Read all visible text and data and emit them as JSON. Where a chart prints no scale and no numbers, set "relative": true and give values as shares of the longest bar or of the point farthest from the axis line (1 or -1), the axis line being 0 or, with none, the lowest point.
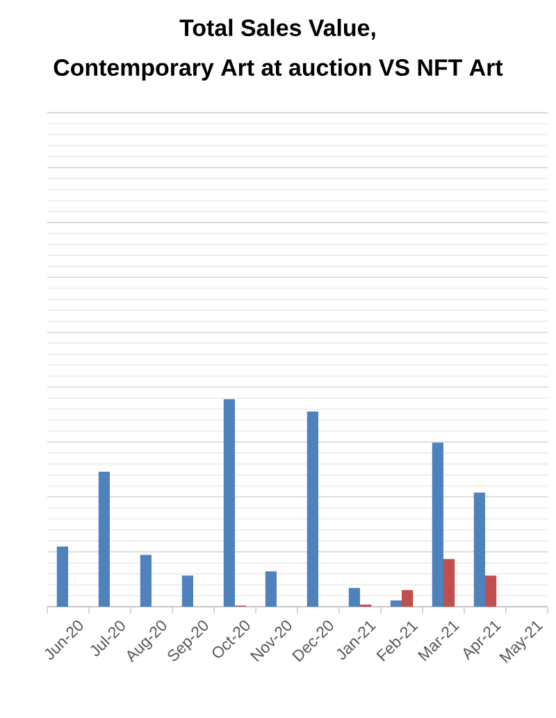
{
  "chart_data": {
    "type": "bar",
    "title": "Total Sales Value,",
    "subtitle": "Contemporary Art at auction VS NFT Art",
    "categories": [
      "Jun-20",
      "Jul-20",
      "Aug-20",
      "Sep-20",
      "Oct-20",
      "Nov-20",
      "Dec-20",
      "Jan-21",
      "Feb-21",
      "Mar-21",
      "Apr-21",
      "May-21"
    ],
    "relative": true,
    "series": [
      {
        "color": "#4f81bd",
        "values": [
          0.29,
          0.65,
          0.25,
          0.15,
          1,
          0.17,
          0.94,
          0.09,
          0.03,
          0.79,
          0.55,
          null
        ]
      },
      {
        "color": "#c0504d",
        "values": [
          0,
          0,
          0,
          0,
          0.005,
          0,
          0,
          0.01,
          0.08,
          0.23,
          0.15,
          null
        ]
      }
    ],
    "grid": "y"
  }
}
